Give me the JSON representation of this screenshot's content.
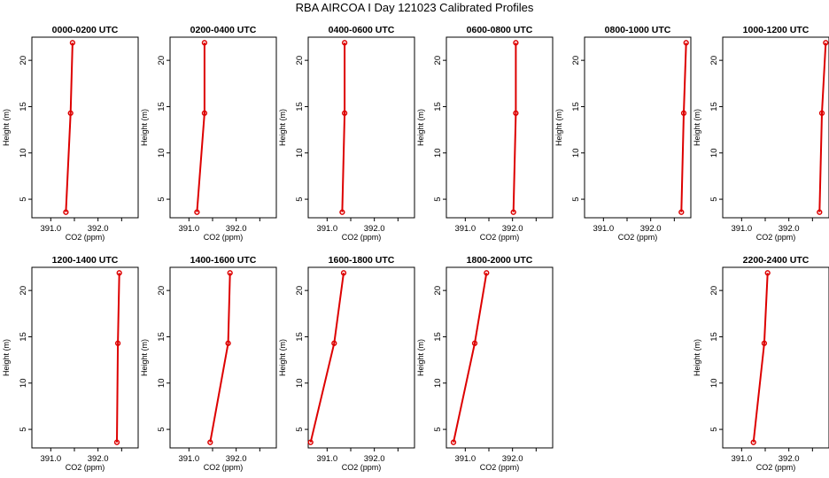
{
  "title": "RBA AIRCOA I  Day 121023  Calibrated Profiles",
  "chart_data": {
    "type": "line",
    "xlabel": "CO2 (ppm)",
    "ylabel": "Height (m)",
    "xlim": [
      390.6,
      392.85
    ],
    "ylim": [
      3.0,
      22.5
    ],
    "xticks": [
      "391.0",
      "392.0"
    ],
    "yticks": [
      "5",
      "10",
      "15",
      "20"
    ],
    "grid": false,
    "line_color": "#dd0000",
    "panels": [
      {
        "name": "0000-0200 UTC",
        "x": [
          391.32,
          391.42,
          391.46
        ],
        "y": [
          3.6,
          14.3,
          21.9
        ]
      },
      {
        "name": "0200-0400 UTC",
        "x": [
          391.17,
          391.33,
          391.33
        ],
        "y": [
          3.6,
          14.3,
          21.9
        ]
      },
      {
        "name": "0400-0600 UTC",
        "x": [
          391.32,
          391.37,
          391.37
        ],
        "y": [
          3.6,
          14.3,
          21.9
        ]
      },
      {
        "name": "0600-0800 UTC",
        "x": [
          392.02,
          392.07,
          392.07
        ],
        "y": [
          3.6,
          14.3,
          21.9
        ]
      },
      {
        "name": "0800-1000 UTC",
        "x": [
          392.65,
          392.7,
          392.75
        ],
        "y": [
          3.6,
          14.3,
          21.9
        ]
      },
      {
        "name": "1000-1200 UTC",
        "x": [
          392.65,
          392.7,
          392.78
        ],
        "y": [
          3.6,
          14.3,
          21.9
        ]
      },
      {
        "name": "1200-1400 UTC",
        "x": [
          392.4,
          392.42,
          392.45
        ],
        "y": [
          3.6,
          14.3,
          21.9
        ]
      },
      {
        "name": "1400-1600 UTC",
        "x": [
          391.45,
          391.83,
          391.87
        ],
        "y": [
          3.6,
          14.3,
          21.9
        ]
      },
      {
        "name": "1600-1800 UTC",
        "x": [
          390.65,
          391.15,
          391.35
        ],
        "y": [
          3.6,
          14.3,
          21.9
        ]
      },
      {
        "name": "1800-2000 UTC",
        "x": [
          390.75,
          391.2,
          391.45
        ],
        "y": [
          3.6,
          14.3,
          21.9
        ]
      },
      {
        "name": "2200-2400 UTC",
        "x": [
          391.25,
          391.48,
          391.55
        ],
        "y": [
          3.6,
          14.3,
          21.9
        ]
      }
    ]
  }
}
